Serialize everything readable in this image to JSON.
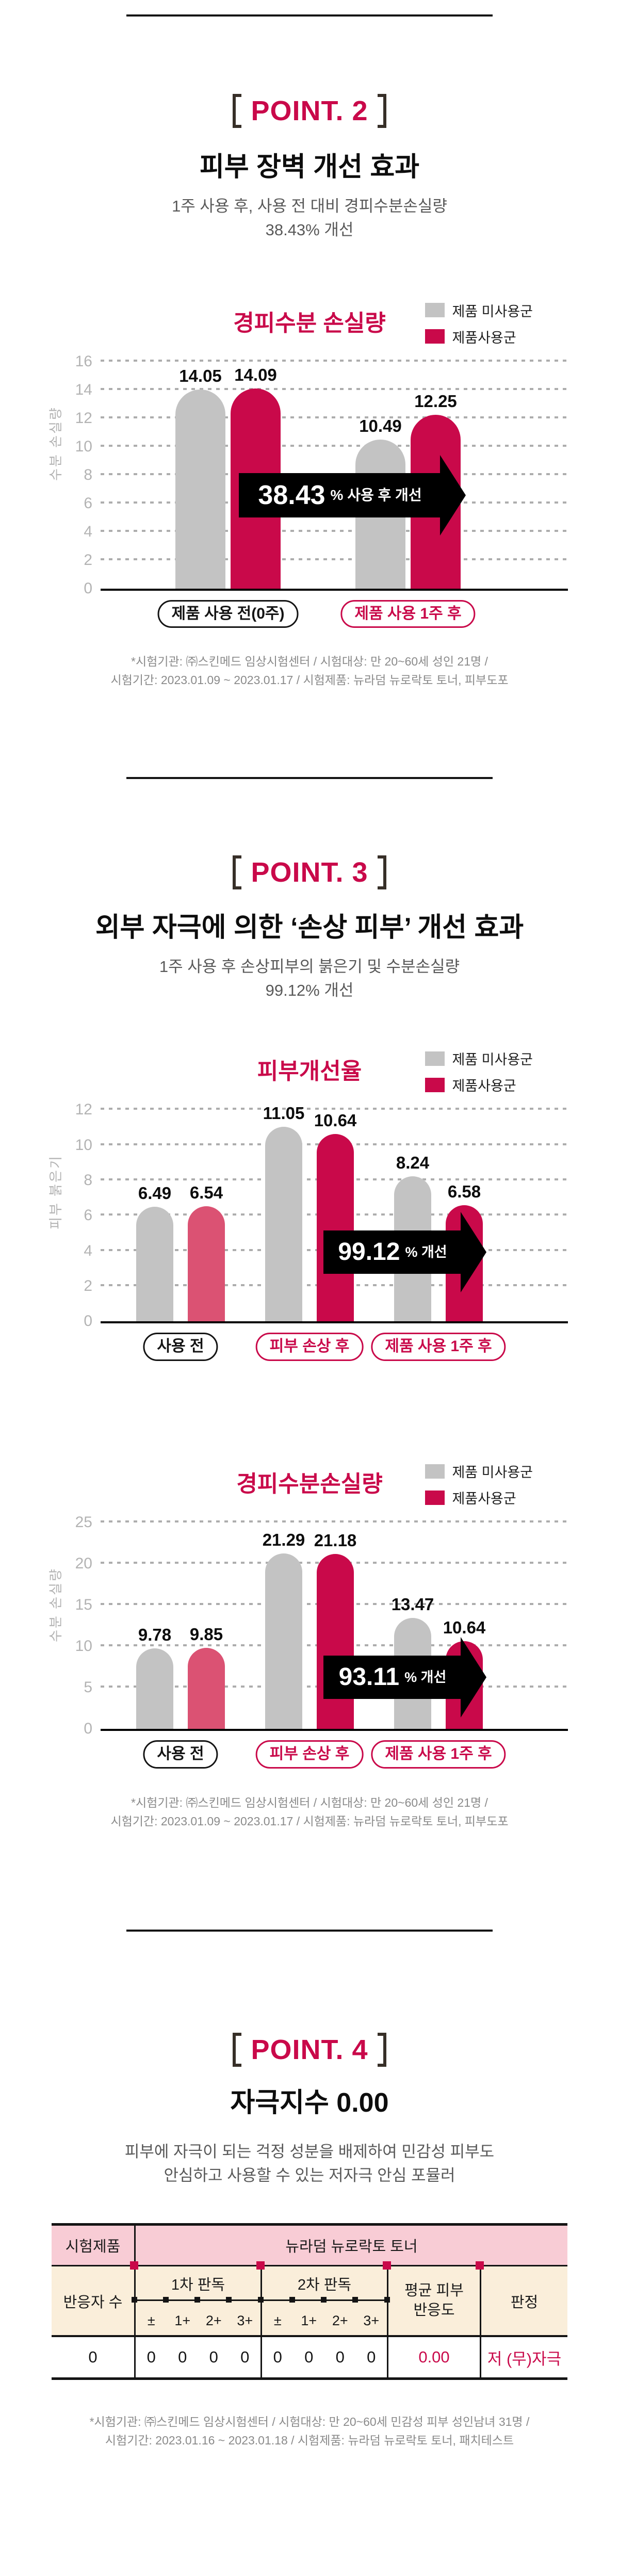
{
  "colors": {
    "accent": "#c9094a",
    "pink_bar": "#db5273",
    "gray_bar": "#c3c3c3",
    "table_header_pink": "#f8ccd5",
    "table_header_cream": "#faeeda"
  },
  "sections": {
    "point2": {
      "badge": "POINT. 2",
      "title": "피부 장벽 개선 효과",
      "subtitle_line1": "1주 사용 후, 사용 전 대비 경피수분손실량",
      "subtitle_line2": "38.43% 개선",
      "footnote_line1": "*시험기관: ㈜스킨메드 임상시험센터 / 시험대상: 만 20~60세 성인 21명 /",
      "footnote_line2": "시험기간: 2023.01.09 ~ 2023.01.17 / 시험제품: 뉴라덤 뉴로락토 토너, 피부도포"
    },
    "point3": {
      "badge": "POINT. 3",
      "title": "외부 자극에 의한 ‘손상 피부’ 개선 효과",
      "subtitle_line1": "1주 사용 후 손상피부의 붉은기 및 수분손실량",
      "subtitle_line2": "99.12% 개선",
      "footnote_line1": "*시험기관: ㈜스킨메드 임상시험센터 / 시험대상: 만 20~60세 성인 21명 /",
      "footnote_line2": "시험기간: 2023.01.09 ~ 2023.01.17 / 시험제품: 뉴라덤 뉴로락토 토너, 피부도포"
    },
    "point4": {
      "badge": "POINT. 4",
      "title": "자극지수 0.00",
      "subtitle_line1": "피부에 자극이 되는 걱정 성분을 배제하여  민감성 피부도",
      "subtitle_line2": "안심하고 사용할 수 있는 저자극 안심 포뮬러",
      "footnote_line1": "*시험기관: ㈜스킨메드 임상시험센터 / 시험대상: 만 20~60세 민감성 피부 성인남녀 31명 /",
      "footnote_line2": "시험기간: 2023.01.16 ~ 2023.01.18 / 시험제품: 뉴라덤 뉴로락토 토너, 패치테스트"
    }
  },
  "chart_data": [
    {
      "type": "bar",
      "title": "경피수분 손실량",
      "ylabel": "수분 손실량",
      "ylim": [
        0,
        16
      ],
      "ytick_step": 2,
      "grid": true,
      "legend_position": "top-right",
      "legend": [
        {
          "label": "제품 미사용군",
          "color": "gray"
        },
        {
          "label": "제품사용군",
          "color": "crimson"
        }
      ],
      "groups": [
        {
          "label": "제품 사용 전(0주)",
          "label_color": "black",
          "values": [
            {
              "value": 14.05,
              "label": "14.05",
              "color": "gray"
            },
            {
              "value": 14.09,
              "label": "14.09",
              "color": "crimson"
            }
          ]
        },
        {
          "label": "제품 사용 1주 후",
          "label_color": "crimson",
          "values": [
            {
              "value": 10.49,
              "label": "10.49",
              "color": "gray"
            },
            {
              "value": 12.25,
              "label": "12.25",
              "color": "crimson"
            }
          ]
        }
      ],
      "annotation": {
        "value": "38.43",
        "suffix": "% 사용 후 개선"
      }
    },
    {
      "type": "bar",
      "title": "피부개선율",
      "ylabel": "피부 붉은기",
      "ylim": [
        0,
        12
      ],
      "ytick_step": 2,
      "grid": true,
      "legend_position": "top-right",
      "legend": [
        {
          "label": "제품 미사용군",
          "color": "gray"
        },
        {
          "label": "제품사용군",
          "color": "crimson"
        }
      ],
      "groups": [
        {
          "label": "사용 전",
          "label_color": "black",
          "values": [
            {
              "value": 6.49,
              "label": "6.49",
              "color": "gray"
            },
            {
              "value": 6.54,
              "label": "6.54",
              "color": "pink"
            }
          ]
        },
        {
          "label": "피부 손상 후",
          "label_color": "crimson",
          "values": [
            {
              "value": 11.05,
              "label": "11.05",
              "color": "gray"
            },
            {
              "value": 10.64,
              "label": "10.64",
              "color": "crimson"
            }
          ]
        },
        {
          "label": "제품 사용 1주 후",
          "label_color": "crimson",
          "values": [
            {
              "value": 8.24,
              "label": "8.24",
              "color": "gray"
            },
            {
              "value": 6.58,
              "label": "6.58",
              "color": "crimson"
            }
          ]
        }
      ],
      "annotation": {
        "value": "99.12",
        "suffix": "% 개선"
      }
    },
    {
      "type": "bar",
      "title": "경피수분손실량",
      "ylabel": "수분 손실량",
      "ylim": [
        0,
        25
      ],
      "ytick_step": 5,
      "grid": true,
      "legend_position": "top-right",
      "legend": [
        {
          "label": "제품 미사용군",
          "color": "gray"
        },
        {
          "label": "제품사용군",
          "color": "crimson"
        }
      ],
      "groups": [
        {
          "label": "사용 전",
          "label_color": "black",
          "values": [
            {
              "value": 9.78,
              "label": "9.78",
              "color": "gray"
            },
            {
              "value": 9.85,
              "label": "9.85",
              "color": "pink"
            }
          ]
        },
        {
          "label": "피부 손상 후",
          "label_color": "crimson",
          "values": [
            {
              "value": 21.29,
              "label": "21.29",
              "color": "gray"
            },
            {
              "value": 21.18,
              "label": "21.18",
              "color": "crimson"
            }
          ]
        },
        {
          "label": "제품 사용 1주 후",
          "label_color": "crimson",
          "values": [
            {
              "value": 13.47,
              "label": "13.47",
              "color": "gray"
            },
            {
              "value": 10.64,
              "label": "10.64",
              "color": "crimson"
            }
          ]
        }
      ],
      "annotation": {
        "value": "93.11",
        "suffix": "% 개선"
      }
    },
    {
      "type": "table",
      "product_label": "시험제품",
      "product_value": "뉴라덤 뉴로락토 토너",
      "respondents_label": "반응자 수",
      "reading1_label": "1차 판독",
      "reading2_label": "2차 판독",
      "grade_labels": [
        "±",
        "1+",
        "2+",
        "3+"
      ],
      "avg_label_line1": "평균 피부",
      "avg_label_line2": "반응도",
      "judgement_label": "판정",
      "respondents_value": "0",
      "reading1_counts": [
        "0",
        "0",
        "0",
        "0"
      ],
      "reading2_counts": [
        "0",
        "0",
        "0",
        "0"
      ],
      "avg_value": "0.00",
      "judgement_value": "저 (무)자극"
    }
  ]
}
